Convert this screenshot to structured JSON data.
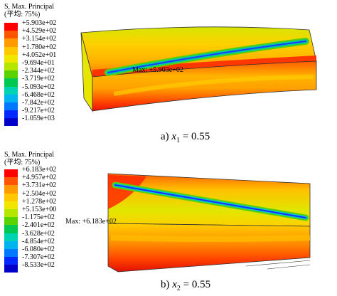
{
  "panels": [
    {
      "title_line1": "S, Max. Principal",
      "title_line2": "(平均: 75%)",
      "legend_values": [
        "+5.903e+02",
        "+4.529e+02",
        "+3.154e+02",
        "+1.780e+02",
        "+4.052e+01",
        "-9.694e+01",
        "-2.344e+02",
        "-3.719e+02",
        "-5.093e+02",
        "-6.468e+02",
        "-7.842e+02",
        "-9.217e+02",
        "-1.059e+03"
      ],
      "max_label": "Max: +5.903e+02",
      "caption_prefix": "a)",
      "caption_var": "x",
      "caption_sub": "1",
      "caption_value": "= 0.55"
    },
    {
      "title_line1": "S, Max. Principal",
      "title_line2": "(平均: 75%)",
      "legend_values": [
        "+6.183e+02",
        "+4.957e+02",
        "+3.731e+02",
        "+2.504e+02",
        "+1.278e+02",
        "+5.153e+00",
        "-1.175e+02",
        "-2.401e+02",
        "-3.628e+02",
        "-4.854e+02",
        "-6.080e+02",
        "-7.307e+02",
        "-8.533e+02"
      ],
      "max_label": "Max: +6.183e+02",
      "caption_prefix": "b)",
      "caption_var": "x",
      "caption_sub": "2",
      "caption_value": "= 0.55"
    }
  ],
  "legend_colors": [
    "#ff0000",
    "#ff5500",
    "#ff9a00",
    "#ffc800",
    "#f0e600",
    "#b4e600",
    "#5ad200",
    "#00c850",
    "#00d2b4",
    "#00b4f0",
    "#0078ff",
    "#0028ff",
    "#0000c8"
  ]
}
